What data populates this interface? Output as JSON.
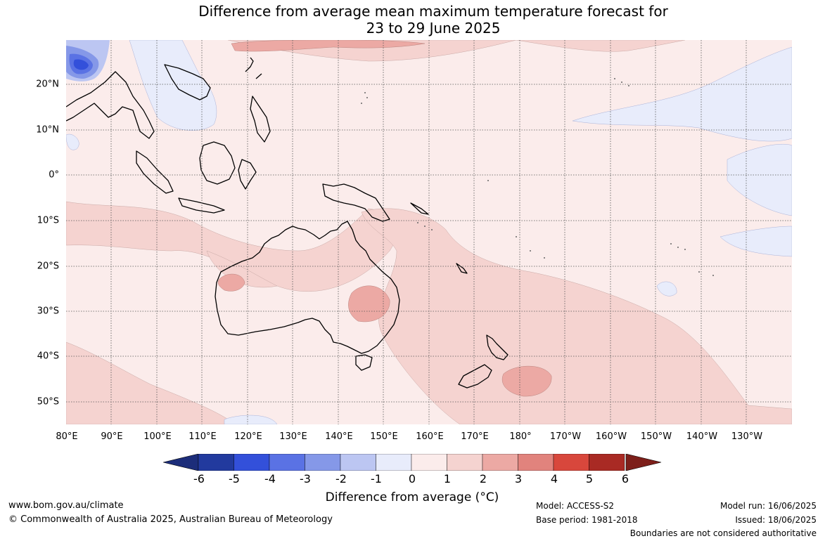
{
  "title_line1": "Difference from average mean maximum temperature forecast for",
  "title_line2": "23 to 29 June 2025",
  "latitude_labels": [
    "20°N",
    "10°N",
    "0°",
    "10°S",
    "20°S",
    "30°S",
    "40°S",
    "50°S"
  ],
  "longitude_labels": [
    "80°E",
    "90°E",
    "100°E",
    "110°E",
    "120°E",
    "130°E",
    "140°E",
    "150°E",
    "160°E",
    "170°E",
    "180°",
    "170°W",
    "160°W",
    "150°W",
    "140°W",
    "130°W"
  ],
  "colorbar": {
    "ticks": [
      "-6",
      "-5",
      "-4",
      "-3",
      "-2",
      "-1",
      "0",
      "1",
      "2",
      "3",
      "4",
      "5",
      "6"
    ],
    "colors": [
      "#223a9e",
      "#3350da",
      "#5a72e4",
      "#8598e8",
      "#bcc6f2",
      "#e8ecfb",
      "#fbeceb",
      "#f5d3d0",
      "#eca9a4",
      "#e1837d",
      "#d8473c",
      "#a92a24"
    ],
    "min_color": "#1c2d7a",
    "max_color": "#7d1f1a",
    "title": "Difference from average (",
    "title_unit": "°C)"
  },
  "footer": {
    "website": "www.bom.gov.au/climate",
    "copyright": "© Commonwealth of Australia 2025, Australian Bureau of Meteorology",
    "model": "Model: ACCESS-S2",
    "base_period": "Base period: 1981-2018",
    "model_run": "Model run: 16/06/2025",
    "issued": "Issued: 18/06/2025",
    "disclaimer": "Boundaries are not considered authoritative"
  },
  "map_colors": {
    "ocean_base": "#fbeceb",
    "warm_1_2": "#f5d3d0",
    "warm_2_3": "#eca9a4",
    "cool_0_1": "#e8ecfb",
    "cool_1_2": "#bcc6f2",
    "cool_strong": "#3350da",
    "coast": "#000000",
    "grid": "#555555"
  }
}
